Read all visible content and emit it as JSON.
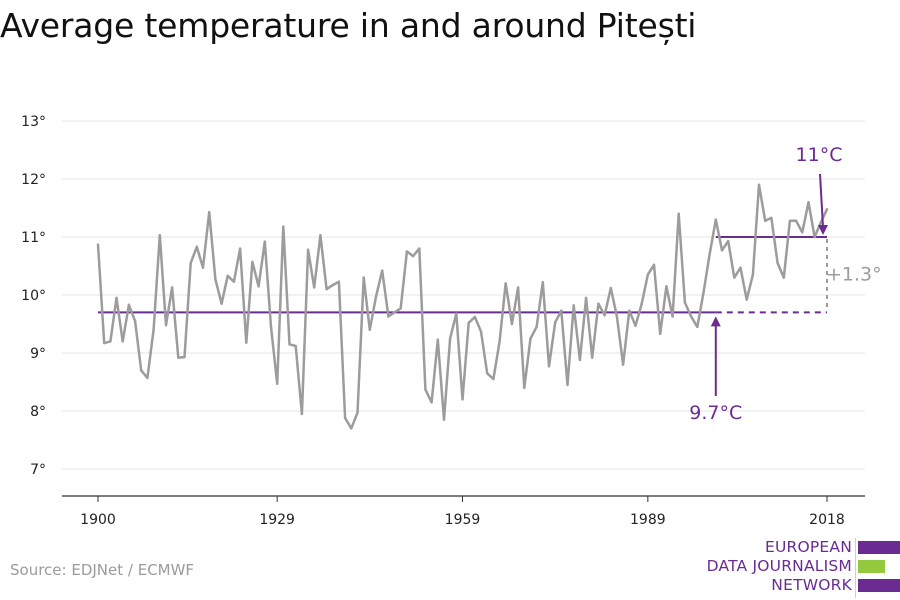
{
  "title": "Average temperature in and around Pitești",
  "source": "Source: EDJNet / ECMWF",
  "logo": {
    "lines": [
      "EUROPEAN",
      "DATA JOURNALISM",
      "NETWORK"
    ],
    "bar_colors": [
      "#6a2c91",
      "#95c93d",
      "#6a2c91"
    ]
  },
  "colors": {
    "series": "#9c9c9c",
    "baseline": "#6a2c91",
    "difference": "#9c9c9c",
    "grid": "#e6e6e6",
    "axis": "#333333"
  },
  "chart_data": {
    "type": "line",
    "title": "Average temperature in and around Pitești",
    "xlabel": "",
    "ylabel": "",
    "xlim": [
      1900,
      2018
    ],
    "ylim": [
      7,
      13
    ],
    "x_ticks": [
      1900,
      1929,
      1959,
      1989,
      2018
    ],
    "y_ticks": [
      7,
      8,
      9,
      10,
      11,
      12,
      13
    ],
    "y_tick_labels": [
      "7°",
      "8°",
      "9°",
      "10°",
      "11°",
      "12°",
      "13°"
    ],
    "grid": "horizontal",
    "x": [
      1900,
      1901,
      1902,
      1903,
      1904,
      1905,
      1906,
      1907,
      1908,
      1909,
      1910,
      1911,
      1912,
      1913,
      1914,
      1915,
      1916,
      1917,
      1918,
      1919,
      1920,
      1921,
      1922,
      1923,
      1924,
      1925,
      1926,
      1927,
      1928,
      1929,
      1930,
      1931,
      1932,
      1933,
      1934,
      1935,
      1936,
      1937,
      1938,
      1939,
      1940,
      1941,
      1942,
      1943,
      1944,
      1945,
      1946,
      1947,
      1948,
      1949,
      1950,
      1951,
      1952,
      1953,
      1954,
      1955,
      1956,
      1957,
      1958,
      1959,
      1960,
      1961,
      1962,
      1963,
      1964,
      1965,
      1966,
      1967,
      1968,
      1969,
      1970,
      1971,
      1972,
      1973,
      1974,
      1975,
      1976,
      1977,
      1978,
      1979,
      1980,
      1981,
      1982,
      1983,
      1984,
      1985,
      1986,
      1987,
      1988,
      1989,
      1990,
      1991,
      1992,
      1993,
      1994,
      1995,
      1996,
      1997,
      1998,
      1999,
      2000,
      2001,
      2002,
      2003,
      2004,
      2005,
      2006,
      2007,
      2008,
      2009,
      2010,
      2011,
      2012,
      2013,
      2014,
      2015,
      2016,
      2017,
      2018
    ],
    "series": [
      {
        "values": [
          10.87,
          9.17,
          9.2,
          9.95,
          9.2,
          9.83,
          9.55,
          8.7,
          8.57,
          9.4,
          11.03,
          9.48,
          10.13,
          8.92,
          8.93,
          10.55,
          10.83,
          10.47,
          11.43,
          10.27,
          9.85,
          10.33,
          10.23,
          10.8,
          9.18,
          10.57,
          10.15,
          10.92,
          9.45,
          8.47,
          11.18,
          9.15,
          9.12,
          7.95,
          10.78,
          10.13,
          11.03,
          10.1,
          10.17,
          10.23,
          7.88,
          7.7,
          7.97,
          10.3,
          9.4,
          9.97,
          10.42,
          9.63,
          9.7,
          9.77,
          10.75,
          10.67,
          10.8,
          8.37,
          8.15,
          9.23,
          7.85,
          9.25,
          9.68,
          8.2,
          9.52,
          9.62,
          9.37,
          8.65,
          8.55,
          9.2,
          10.2,
          9.5,
          10.13,
          8.4,
          9.25,
          9.45,
          10.22,
          8.77,
          9.53,
          9.73,
          8.45,
          9.82,
          8.88,
          9.95,
          8.92,
          9.85,
          9.65,
          10.12,
          9.63,
          8.8,
          9.73,
          9.47,
          9.85,
          10.35,
          10.52,
          9.33,
          10.15,
          9.63,
          11.4,
          9.87,
          9.63,
          9.45,
          10.03,
          10.7,
          11.3,
          10.77,
          10.93,
          10.3,
          10.47,
          9.92,
          10.35,
          11.9,
          11.28,
          11.33,
          10.55,
          10.3,
          11.28,
          11.28,
          11.08,
          11.6,
          11.0,
          11.25,
          11.48
        ],
        "color": "#9c9c9c"
      }
    ],
    "annotations": {
      "baseline": {
        "value": 9.7,
        "label": "9.7°C",
        "from": 1900,
        "solid_until": 2000,
        "dashed_until": 2018,
        "arrow_x": 2000
      },
      "recent": {
        "value": 11.0,
        "label": "11°C",
        "from": 2000,
        "to": 2018
      },
      "difference": {
        "label": "+1.3°"
      }
    }
  }
}
